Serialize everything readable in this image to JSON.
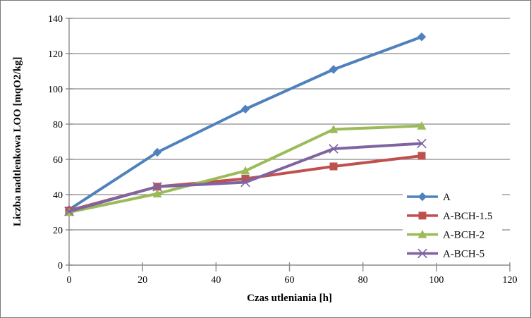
{
  "chart_data": {
    "type": "line",
    "title": "",
    "xlabel": "Czas utleniania [h]",
    "ylabel": "Liczba nadtlenkowa LOO [mqO2/kg]",
    "x": [
      0,
      24,
      48,
      72,
      96
    ],
    "series": [
      {
        "name": "A",
        "marker": "diamond",
        "color": "#4F81BD",
        "values": [
          31.5,
          64,
          88.5,
          111,
          129.5
        ]
      },
      {
        "name": "A-BCH-1.5",
        "marker": "square",
        "color": "#C0504D",
        "values": [
          31,
          44.5,
          49,
          56,
          62
        ]
      },
      {
        "name": "A-BCH-2",
        "marker": "triangle",
        "color": "#9BBB59",
        "values": [
          30,
          40.5,
          53.5,
          77,
          79
        ]
      },
      {
        "name": "A-BCH-5",
        "marker": "x",
        "color": "#8064A2",
        "values": [
          30.5,
          44.5,
          47,
          66,
          69
        ]
      }
    ],
    "xlim": [
      0,
      120
    ],
    "ylim": [
      0,
      140
    ],
    "x_ticks": [
      0,
      20,
      40,
      60,
      80,
      100,
      120
    ],
    "y_ticks": [
      0,
      20,
      40,
      60,
      80,
      100,
      120,
      140
    ],
    "grid": "horizontal-only",
    "legend_position": "inside-right",
    "colors": {
      "axis": "#8a8a8a",
      "grid": "#8a8a8a",
      "text": "#000000",
      "background": "#ffffff",
      "frame_border": "#7a7a7a"
    }
  }
}
